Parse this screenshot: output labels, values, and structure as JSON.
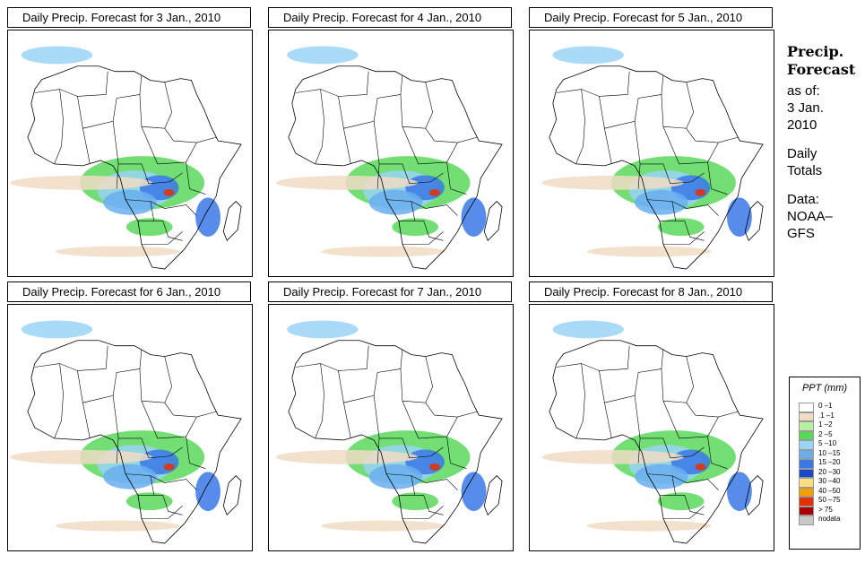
{
  "panels": [
    {
      "title": "Daily Precip. Forecast for  3 Jan., 2010"
    },
    {
      "title": "Daily Precip. Forecast for  4 Jan., 2010"
    },
    {
      "title": "Daily Precip. Forecast for  5 Jan., 2010"
    },
    {
      "title": "Daily Precip. Forecast for  6 Jan., 2010"
    },
    {
      "title": "Daily Precip. Forecast for  7 Jan., 2010"
    },
    {
      "title": "Daily Precip. Forecast for  8 Jan., 2010"
    }
  ],
  "sidebar": {
    "heading_line1": "Precip.",
    "heading_line2": "Forecast",
    "asof": "as of:",
    "date_line1": "3 Jan.",
    "date_line2": "2010",
    "daily_line1": "Daily",
    "daily_line2": "Totals",
    "data_line1": "Data:",
    "data_line2": "NOAA–",
    "data_line3": "GFS"
  },
  "legend": {
    "title": "PPT (mm)",
    "items": [
      {
        "label": "0 –1",
        "color": "#ffffff"
      },
      {
        "label": ".1 –1",
        "color": "#f0dcc4"
      },
      {
        "label": "1 –2",
        "color": "#b6f0a0"
      },
      {
        "label": "2 –5",
        "color": "#5ad85a"
      },
      {
        "label": "5 –10",
        "color": "#9ad4f6"
      },
      {
        "label": "10 –15",
        "color": "#6aaef0"
      },
      {
        "label": "15 –20",
        "color": "#3a78e8"
      },
      {
        "label": "20 –30",
        "color": "#1a46c8"
      },
      {
        "label": "30 –40",
        "color": "#fae080"
      },
      {
        "label": "40 –50",
        "color": "#f5a000"
      },
      {
        "label": "50 –75",
        "color": "#e63000"
      },
      {
        "label": "> 75",
        "color": "#a80000"
      },
      {
        "label": "nodata",
        "color": "#c8c8c8"
      }
    ]
  }
}
